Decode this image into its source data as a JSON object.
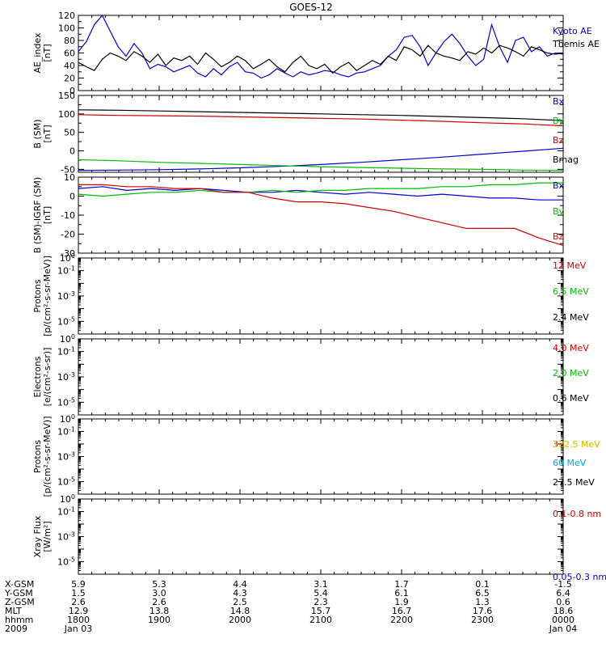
{
  "title": "GOES-12",
  "chart_data": [
    {
      "type": "line",
      "id": "ae",
      "ylabel": [
        "AE_index",
        "[nT]"
      ],
      "ylim": [
        0,
        120
      ],
      "yticks": [
        0,
        20,
        40,
        60,
        80,
        100,
        120
      ],
      "series": [
        {
          "name": "Kyoto AE",
          "color": "#0000cc",
          "y": [
            62,
            78,
            105,
            125,
            95,
            70,
            55,
            75,
            60,
            35,
            42,
            38,
            30,
            35,
            40,
            28,
            22,
            35,
            25,
            38,
            45,
            30,
            28,
            20,
            25,
            35,
            28,
            22,
            30,
            25,
            28,
            32,
            30,
            25,
            22,
            28,
            30,
            35,
            40,
            55,
            65,
            85,
            88,
            70,
            40,
            60,
            78,
            90,
            75,
            55,
            40,
            50,
            105,
            70,
            45,
            80,
            85,
            62,
            70,
            55,
            60,
            58
          ]
        },
        {
          "name": "Themis AE",
          "color": "#000000",
          "y": [
            45,
            38,
            32,
            50,
            60,
            55,
            48,
            62,
            55,
            45,
            58,
            40,
            52,
            48,
            55,
            42,
            60,
            50,
            38,
            45,
            55,
            48,
            35,
            42,
            50,
            38,
            30,
            45,
            55,
            40,
            35,
            42,
            28,
            38,
            45,
            32,
            40,
            48,
            42,
            55,
            48,
            70,
            65,
            55,
            72,
            60,
            55,
            52,
            48,
            62,
            58,
            68,
            60,
            72,
            68,
            62,
            55,
            70,
            65,
            60,
            58,
            60
          ]
        }
      ]
    },
    {
      "type": "line",
      "id": "bsm",
      "ylabel": [
        "B (SM)",
        "[nT]"
      ],
      "ylim": [
        -58,
        150
      ],
      "yticks": [
        -50,
        0,
        50,
        100,
        150
      ],
      "series": [
        {
          "name": "Bx",
          "color": "#0000cc",
          "y": [
            -53,
            -52,
            -51,
            -49,
            -46,
            -42,
            -37,
            -31,
            -24,
            -17,
            -9,
            -1,
            7
          ]
        },
        {
          "name": "By",
          "color": "#00bb00",
          "y": [
            -24,
            -27,
            -31,
            -34,
            -37,
            -40,
            -43,
            -45,
            -47,
            -49,
            -50,
            -52,
            -53
          ]
        },
        {
          "name": "Bz",
          "color": "#cc0000",
          "y": [
            98,
            96,
            95,
            94,
            92,
            90,
            88,
            86,
            83,
            80,
            76,
            73,
            68
          ]
        },
        {
          "name": "Bmag",
          "color": "#000000",
          "y": [
            111,
            110,
            108,
            106,
            104,
            102,
            100,
            98,
            96,
            93,
            90,
            87,
            82
          ]
        }
      ]
    },
    {
      "type": "line",
      "id": "bgrf",
      "ylabel": [
        "B (SM)-IGRF (SM)",
        "[nT]"
      ],
      "ylim": [
        -30,
        10
      ],
      "yticks": [
        -30,
        -20,
        -10,
        0,
        10
      ],
      "series": [
        {
          "name": "Bx",
          "color": "#0000cc",
          "y": [
            4,
            5,
            3,
            4,
            3,
            4,
            3,
            2,
            2,
            3,
            2,
            1,
            2,
            1,
            0,
            1,
            0,
            -1,
            -1,
            -2,
            -2
          ]
        },
        {
          "name": "By",
          "color": "#00bb00",
          "y": [
            1,
            0,
            1,
            2,
            2,
            3,
            2,
            2,
            3,
            2,
            3,
            3,
            4,
            4,
            4,
            5,
            5,
            6,
            6,
            7,
            7
          ]
        },
        {
          "name": "Bz",
          "color": "#cc0000",
          "y": [
            6,
            6,
            5,
            5,
            4,
            4,
            2,
            2,
            -1,
            -3,
            -3,
            -4,
            -6,
            -8,
            -11,
            -14,
            -17,
            -17,
            -17,
            -22,
            -26
          ]
        }
      ]
    },
    {
      "type": "line",
      "id": "protons1",
      "ylabel": [
        "Protons",
        "[p/(cm²-s-sr-MeV)]"
      ],
      "ylog": true,
      "ylim": [
        1e-06,
        1
      ],
      "series": [
        {
          "name": "12 MeV",
          "color": "#cc0000",
          "y": []
        },
        {
          "name": "6.5 MeV",
          "color": "#00bb00",
          "y": []
        },
        {
          "name": "2.4 MeV",
          "color": "#000000",
          "y": []
        }
      ]
    },
    {
      "type": "line",
      "id": "electrons",
      "ylabel": [
        "Electrons",
        "[e/(cm²-s-sr)]"
      ],
      "ylog": true,
      "ylim": [
        1e-06,
        1
      ],
      "series": [
        {
          "name": "4.0 MeV",
          "color": "#cc0000",
          "y": []
        },
        {
          "name": "2.0 MeV",
          "color": "#00bb00",
          "y": []
        },
        {
          "name": "0.6 MeV",
          "color": "#000000",
          "y": []
        }
      ]
    },
    {
      "type": "line",
      "id": "protons2",
      "ylabel": [
        "Protons",
        "[p/(cm²-s-sr-MeV)]"
      ],
      "ylog": true,
      "ylim": [
        1e-06,
        1
      ],
      "series": [
        {
          "name": "332.5 MeV",
          "color": "#cc0000",
          "y": []
        },
        {
          "name": "122.5 MeV",
          "color": "#dddd00",
          "y": []
        },
        {
          "name": "60 MeV",
          "color": "#00aadd",
          "y": []
        },
        {
          "name": "27.5 MeV",
          "color": "#000000",
          "y": []
        }
      ]
    },
    {
      "type": "line",
      "id": "xray",
      "ylabel": [
        "Xray  Flux",
        "[W/m²]"
      ],
      "ylog": true,
      "ylim": [
        1e-06,
        1
      ],
      "series": [
        {
          "name": "0.1-0.8 nm",
          "color": "#cc0000",
          "y": []
        },
        {
          "name": "0.05-0.3 nm",
          "color": "#0000cc",
          "y": []
        }
      ]
    }
  ],
  "footer": {
    "row_labels": [
      "X-GSM",
      "Y-GSM",
      "Z-GSM",
      "MLT",
      "hhmm",
      "2009"
    ],
    "columns": [
      [
        "5.9",
        "1.5",
        "2.6",
        "12.9",
        "1800",
        "Jan 03"
      ],
      [
        "5.3",
        "3.0",
        "2.6",
        "13.8",
        "1900",
        ""
      ],
      [
        "4.4",
        "4.3",
        "2.5",
        "14.8",
        "2000",
        ""
      ],
      [
        "3.1",
        "5.4",
        "2.3",
        "15.7",
        "2100",
        ""
      ],
      [
        "1.7",
        "6.1",
        "1.9",
        "16.7",
        "2200",
        ""
      ],
      [
        "0.1",
        "6.5",
        "1.3",
        "17.6",
        "2300",
        ""
      ],
      [
        "-1.5",
        "6.4",
        "0.6",
        "18.6",
        "0000",
        "Jan 04"
      ]
    ]
  }
}
